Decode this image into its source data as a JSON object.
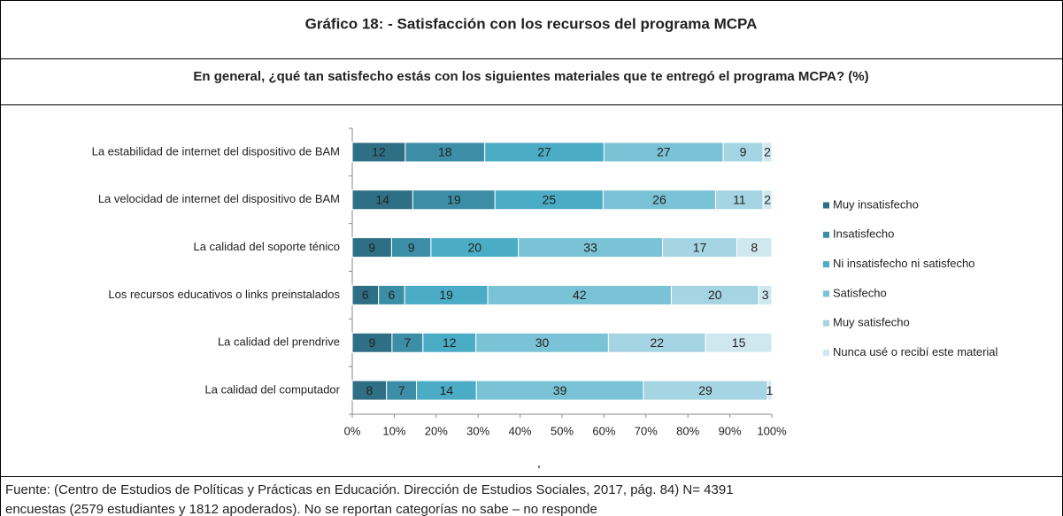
{
  "chart_data": {
    "type": "bar",
    "orientation": "horizontal",
    "stacked": "percent",
    "title": "Gráfico 18: -  Satisfacción con los recursos del programa MCPA",
    "subtitle": "En general, ¿qué tan satisfecho estás con los siguientes materiales que te entregó el programa MCPA? (%)",
    "categories": [
      "La estabilidad de internet del dispositivo de BAM",
      "La velocidad de internet del dispositivo de BAM",
      "La calidad del soporte ténico",
      "Los recursos educativos o links preinstalados",
      "La calidad del prendrive",
      "La calidad del computador"
    ],
    "series": [
      {
        "name": "Muy insatisfecho",
        "color": "#2f6f85",
        "values": [
          12,
          14,
          9,
          6,
          9,
          8
        ]
      },
      {
        "name": "Insatisfecho",
        "color": "#3b8ea6",
        "values": [
          18,
          19,
          9,
          6,
          7,
          7
        ]
      },
      {
        "name": "Ni insatisfecho ni satisfecho",
        "color": "#4bacc6",
        "values": [
          27,
          25,
          20,
          19,
          12,
          14
        ]
      },
      {
        "name": "Satisfecho",
        "color": "#7ac2d6",
        "values": [
          27,
          26,
          33,
          42,
          30,
          39
        ]
      },
      {
        "name": "Muy satisfecho",
        "color": "#a5d4e2",
        "values": [
          9,
          11,
          17,
          20,
          22,
          29
        ]
      },
      {
        "name": "Nunca usé o recibí este material",
        "color": "#cfe8f0",
        "values": [
          2,
          2,
          8,
          3,
          15,
          1
        ]
      }
    ],
    "xlim": [
      0,
      100
    ],
    "xticks": [
      {
        "value": 0,
        "label": "0%"
      },
      {
        "value": 10,
        "label": "10%"
      },
      {
        "value": 20,
        "label": "20%"
      },
      {
        "value": 30,
        "label": "30%"
      },
      {
        "value": 40,
        "label": "40%"
      },
      {
        "value": 50,
        "label": "50%"
      },
      {
        "value": 60,
        "label": "60%"
      },
      {
        "value": 70,
        "label": "70%"
      },
      {
        "value": 80,
        "label": "80%"
      },
      {
        "value": 90,
        "label": "90%"
      },
      {
        "value": 100,
        "label": "100%"
      }
    ],
    "legend": "right",
    "annotation": ".",
    "source": [
      "Fuente: (Centro de Estudios de Políticas y Prácticas en Educación. Dirección de Estudios Sociales, 2017, pág. 84) N= 4391",
      "encuestas (2579 estudiantes y 1812 apoderados). No se reportan categorías no sabe – no responde"
    ]
  }
}
